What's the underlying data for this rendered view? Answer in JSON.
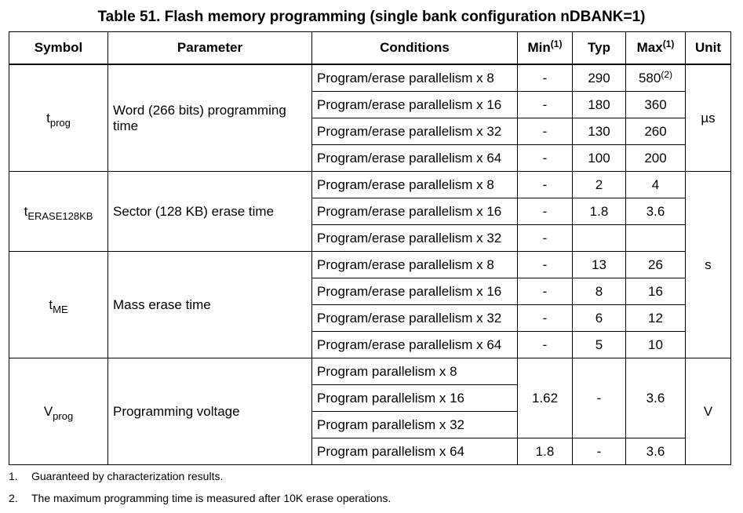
{
  "title": "Table 51. Flash memory programming (single bank configuration nDBANK=1)",
  "headers": {
    "symbol": "Symbol",
    "parameter": "Parameter",
    "conditions": "Conditions",
    "min": "Min",
    "min_ref": "(1)",
    "typ": "Typ",
    "max": "Max",
    "max_ref": "(1)",
    "unit": "Unit"
  },
  "groups": {
    "tprog": {
      "symbol_main": "t",
      "symbol_sub": "prog",
      "parameter": "Word (266 bits) programming time",
      "unit": "µs",
      "rows": [
        {
          "condition": "Program/erase parallelism x 8",
          "min": "-",
          "typ": "290",
          "max": "580",
          "max_ref": "(2)"
        },
        {
          "condition": "Program/erase parallelism x 16",
          "min": "-",
          "typ": "180",
          "max": "360"
        },
        {
          "condition": "Program/erase parallelism x 32",
          "min": "-",
          "typ": "130",
          "max": "260"
        },
        {
          "condition": "Program/erase parallelism x 64",
          "min": "-",
          "typ": "100",
          "max": "200"
        }
      ]
    },
    "terase": {
      "symbol_main": "t",
      "symbol_sub": "ERASE128KB",
      "parameter": "Sector (128 KB) erase time",
      "rows": [
        {
          "condition": "Program/erase parallelism x 8",
          "min": "-",
          "typ": "2",
          "max": "4"
        },
        {
          "condition": "Program/erase parallelism x 16",
          "min": "-",
          "typ": "1.8",
          "max": "3.6"
        },
        {
          "condition": "Program/erase parallelism x 32",
          "min": "-",
          "typ": "",
          "max": ""
        }
      ]
    },
    "tme": {
      "symbol_main": "t",
      "symbol_sub": "ME",
      "parameter": "Mass erase time",
      "unit": "s",
      "rows": [
        {
          "condition": "Program/erase parallelism x 8",
          "min": "-",
          "typ": "13",
          "max": "26"
        },
        {
          "condition": "Program/erase parallelism x 16",
          "min": "-",
          "typ": "8",
          "max": "16"
        },
        {
          "condition": "Program/erase parallelism x 32",
          "min": "-",
          "typ": "6",
          "max": "12"
        },
        {
          "condition": "Program/erase parallelism x 64",
          "min": "-",
          "typ": "5",
          "max": "10"
        }
      ]
    },
    "vprog": {
      "symbol_main": "V",
      "symbol_sub": "prog",
      "parameter": "Programming voltage",
      "unit": "V",
      "rows": [
        {
          "condition": "Program parallelism x 8"
        },
        {
          "condition": "Program parallelism x 16"
        },
        {
          "condition": "Program parallelism x 32"
        },
        {
          "condition": "Program parallelism x 64",
          "min": "1.8",
          "typ": "-",
          "max": "3.6"
        }
      ],
      "shared_min": "1.62",
      "shared_typ": "-",
      "shared_max": "3.6"
    }
  },
  "notes": [
    {
      "num": "1.",
      "text": "Guaranteed by characterization results."
    },
    {
      "num": "2.",
      "text": "The maximum programming time is measured after 10K erase operations."
    }
  ]
}
